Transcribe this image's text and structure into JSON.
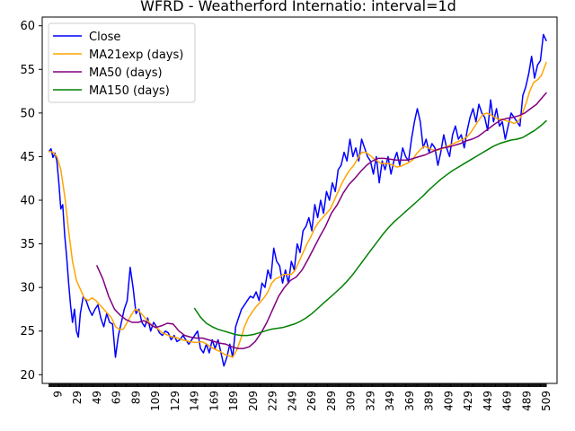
{
  "chart_data": {
    "type": "line",
    "title": "WFRD - Weatherford Internatio: interval=1d",
    "xlabel": "",
    "ylabel": "",
    "xlim": [
      -7,
      520
    ],
    "ylim": [
      19,
      61
    ],
    "yticks": [
      20,
      25,
      30,
      35,
      40,
      45,
      50,
      55,
      60
    ],
    "xticks": [
      9,
      29,
      49,
      69,
      89,
      109,
      129,
      149,
      169,
      189,
      209,
      229,
      249,
      269,
      289,
      309,
      329,
      349,
      369,
      389,
      409,
      429,
      449,
      469,
      489,
      509
    ],
    "grid": false,
    "legend_position": "upper-left",
    "colors": {
      "close": "#0000ff",
      "ma21": "#ffa500",
      "ma50": "#800080",
      "ma150": "#008000"
    },
    "series": [
      {
        "name": "Close",
        "color": "#0000ff",
        "x": [
          0,
          2,
          4,
          6,
          8,
          10,
          12,
          14,
          16,
          18,
          20,
          22,
          24,
          26,
          28,
          30,
          32,
          35,
          38,
          41,
          44,
          47,
          50,
          53,
          56,
          59,
          62,
          65,
          68,
          71,
          74,
          77,
          80,
          83,
          86,
          89,
          92,
          95,
          98,
          101,
          104,
          107,
          110,
          113,
          116,
          119,
          122,
          125,
          128,
          131,
          134,
          137,
          140,
          143,
          146,
          149,
          152,
          155,
          158,
          161,
          164,
          167,
          170,
          173,
          176,
          179,
          182,
          185,
          188,
          191,
          194,
          197,
          200,
          203,
          206,
          209,
          212,
          215,
          218,
          221,
          224,
          227,
          230,
          233,
          236,
          239,
          242,
          245,
          248,
          251,
          254,
          257,
          260,
          263,
          266,
          269,
          272,
          275,
          278,
          281,
          284,
          287,
          290,
          293,
          296,
          299,
          302,
          305,
          308,
          311,
          314,
          317,
          320,
          323,
          326,
          329,
          332,
          335,
          338,
          341,
          344,
          347,
          350,
          353,
          356,
          359,
          362,
          365,
          368,
          371,
          374,
          377,
          380,
          383,
          386,
          389,
          392,
          395,
          398,
          401,
          404,
          407,
          410,
          413,
          416,
          419,
          422,
          425,
          428,
          431,
          434,
          437,
          440,
          443,
          446,
          449,
          452,
          455,
          458,
          461,
          464,
          467,
          470,
          473,
          476,
          479,
          482,
          485,
          488,
          491,
          494,
          497,
          500,
          503,
          506,
          509
        ],
        "values": [
          45.6,
          45.9,
          44.9,
          45.4,
          44.5,
          42.0,
          39.0,
          39.5,
          36.0,
          33.5,
          30.5,
          28.0,
          26.0,
          27.5,
          25.0,
          24.3,
          27.0,
          29.0,
          28.5,
          27.5,
          26.8,
          27.5,
          28.0,
          26.5,
          25.5,
          27.0,
          26.0,
          25.8,
          22.0,
          24.5,
          26.0,
          27.5,
          28.5,
          32.3,
          30.0,
          27.0,
          27.5,
          26.0,
          25.5,
          26.5,
          25.0,
          26.0,
          25.5,
          24.8,
          24.5,
          25.0,
          24.8,
          24.0,
          24.5,
          23.8,
          24.0,
          24.5,
          24.0,
          23.5,
          24.0,
          24.5,
          25.0,
          23.0,
          22.5,
          23.5,
          22.5,
          24.0,
          23.0,
          24.0,
          22.5,
          21.0,
          22.0,
          23.5,
          22.0,
          25.5,
          26.5,
          27.5,
          28.0,
          28.5,
          29.0,
          28.8,
          29.5,
          28.5,
          30.5,
          30.0,
          32.0,
          31.0,
          34.5,
          33.0,
          32.5,
          30.5,
          32.0,
          30.5,
          33.0,
          32.0,
          35.0,
          34.0,
          36.5,
          37.0,
          38.0,
          36.5,
          39.5,
          38.0,
          40.0,
          38.5,
          41.0,
          40.0,
          42.0,
          41.0,
          43.5,
          44.0,
          45.5,
          44.5,
          47.0,
          45.0,
          46.0,
          44.5,
          47.0,
          46.0,
          45.0,
          44.5,
          43.0,
          45.0,
          42.0,
          44.5,
          43.5,
          45.0,
          43.0,
          44.5,
          45.5,
          44.0,
          46.0,
          45.0,
          44.5,
          47.0,
          49.0,
          50.5,
          49.0,
          46.0,
          47.0,
          45.5,
          46.5,
          46.0,
          44.0,
          45.5,
          47.5,
          46.0,
          45.0,
          47.5,
          48.5,
          47.0,
          47.5,
          46.0,
          48.0,
          49.5,
          50.5,
          49.0,
          51.0,
          50.0,
          49.5,
          48.0,
          51.5,
          49.0,
          50.5,
          48.5,
          49.0,
          47.0,
          48.5,
          50.0,
          49.5,
          49.0,
          48.5,
          52.0,
          53.0,
          54.5,
          56.5,
          54.0,
          55.5,
          56.0,
          59.0,
          58.3
        ]
      },
      {
        "name": "MA21exp (days)",
        "color": "#ffa500",
        "x": [
          0,
          4,
          8,
          12,
          16,
          20,
          24,
          28,
          32,
          36,
          40,
          44,
          48,
          52,
          56,
          60,
          64,
          68,
          72,
          76,
          80,
          84,
          88,
          92,
          96,
          100,
          104,
          108,
          112,
          116,
          120,
          124,
          128,
          132,
          136,
          140,
          144,
          148,
          152,
          156,
          160,
          164,
          168,
          172,
          176,
          180,
          184,
          188,
          192,
          196,
          200,
          204,
          208,
          212,
          216,
          220,
          224,
          228,
          232,
          236,
          240,
          244,
          248,
          252,
          256,
          260,
          264,
          268,
          272,
          276,
          280,
          284,
          288,
          292,
          296,
          300,
          304,
          308,
          312,
          316,
          320,
          324,
          328,
          332,
          336,
          340,
          344,
          348,
          352,
          356,
          360,
          364,
          368,
          372,
          376,
          380,
          384,
          388,
          392,
          396,
          400,
          404,
          408,
          412,
          416,
          420,
          424,
          428,
          432,
          436,
          440,
          444,
          448,
          452,
          456,
          460,
          464,
          468,
          472,
          476,
          480,
          484,
          488,
          492,
          496,
          500,
          504,
          509
        ],
        "values": [
          45.6,
          45.5,
          45.0,
          43.5,
          40.5,
          36.5,
          33.0,
          30.8,
          29.8,
          28.8,
          28.5,
          28.8,
          28.5,
          28.0,
          27.5,
          27.0,
          26.5,
          25.5,
          25.2,
          25.2,
          26.0,
          26.8,
          27.5,
          27.3,
          26.8,
          26.3,
          25.8,
          25.5,
          25.2,
          24.8,
          24.6,
          24.4,
          24.3,
          24.2,
          24.0,
          23.9,
          23.8,
          23.7,
          23.7,
          23.8,
          23.6,
          23.3,
          23.0,
          22.8,
          22.6,
          22.3,
          22.2,
          22.0,
          22.8,
          24.0,
          25.5,
          26.5,
          27.2,
          27.8,
          28.3,
          28.8,
          29.5,
          30.5,
          31.0,
          31.2,
          31.5,
          31.5,
          31.5,
          32.0,
          33.0,
          34.0,
          35.0,
          35.8,
          36.8,
          37.5,
          38.0,
          38.5,
          39.0,
          40.0,
          41.0,
          42.0,
          42.8,
          43.5,
          44.0,
          44.8,
          45.5,
          45.5,
          45.2,
          44.8,
          44.5,
          44.2,
          44.2,
          44.2,
          44.0,
          43.8,
          43.9,
          44.1,
          44.3,
          44.6,
          45.3,
          45.8,
          46.2,
          46.0,
          45.8,
          45.7,
          45.8,
          46.0,
          46.2,
          46.4,
          46.6,
          46.8,
          47.0,
          47.3,
          47.8,
          48.5,
          49.2,
          49.8,
          50.0,
          49.8,
          49.5,
          49.3,
          49.3,
          49.1,
          49.0,
          48.8,
          49.0,
          49.8,
          51.0,
          52.5,
          53.5,
          53.8,
          54.3,
          55.8
        ]
      },
      {
        "name": "MA50 (days)",
        "color": "#800080",
        "x": [
          49,
          55,
          61,
          67,
          73,
          79,
          85,
          91,
          97,
          103,
          109,
          115,
          121,
          127,
          133,
          139,
          145,
          151,
          157,
          163,
          169,
          175,
          181,
          187,
          193,
          199,
          205,
          211,
          217,
          223,
          229,
          235,
          241,
          247,
          253,
          259,
          265,
          271,
          277,
          283,
          289,
          295,
          301,
          307,
          313,
          319,
          325,
          331,
          337,
          343,
          349,
          355,
          361,
          367,
          373,
          379,
          385,
          391,
          397,
          403,
          409,
          415,
          421,
          427,
          433,
          439,
          445,
          451,
          457,
          463,
          469,
          475,
          481,
          487,
          493,
          499,
          505,
          509
        ],
        "values": [
          32.5,
          31.0,
          29.0,
          27.5,
          26.8,
          26.3,
          26.0,
          26.0,
          26.2,
          25.8,
          25.4,
          25.6,
          25.9,
          25.8,
          25.0,
          24.5,
          24.3,
          24.2,
          24.2,
          24.0,
          23.8,
          23.6,
          23.5,
          23.2,
          23.0,
          23.0,
          23.2,
          23.8,
          24.8,
          26.0,
          27.5,
          29.0,
          30.0,
          30.8,
          31.2,
          32.0,
          33.2,
          34.5,
          35.8,
          37.0,
          38.5,
          39.5,
          40.8,
          41.8,
          42.5,
          43.3,
          44.0,
          44.5,
          44.8,
          44.8,
          44.7,
          44.6,
          44.6,
          44.6,
          44.8,
          45.0,
          45.2,
          45.5,
          45.8,
          46.0,
          46.1,
          46.3,
          46.5,
          46.8,
          47.0,
          47.3,
          47.8,
          48.3,
          48.8,
          49.2,
          49.4,
          49.5,
          49.7,
          50.0,
          50.5,
          51.0,
          51.8,
          52.3
        ]
      },
      {
        "name": "MA150 (days)",
        "color": "#008000",
        "x": [
          149,
          155,
          161,
          167,
          173,
          179,
          185,
          191,
          197,
          203,
          209,
          215,
          221,
          227,
          233,
          239,
          245,
          251,
          257,
          263,
          269,
          275,
          281,
          287,
          293,
          299,
          305,
          311,
          317,
          323,
          329,
          335,
          341,
          347,
          353,
          359,
          365,
          371,
          377,
          383,
          389,
          395,
          401,
          407,
          413,
          419,
          425,
          431,
          437,
          443,
          449,
          455,
          461,
          467,
          473,
          479,
          485,
          491,
          497,
          503,
          509
        ],
        "values": [
          27.6,
          26.6,
          25.9,
          25.5,
          25.2,
          25.0,
          24.8,
          24.6,
          24.5,
          24.5,
          24.6,
          24.8,
          25.0,
          25.2,
          25.3,
          25.4,
          25.6,
          25.8,
          26.1,
          26.5,
          27.0,
          27.6,
          28.2,
          28.8,
          29.4,
          30.0,
          30.7,
          31.5,
          32.4,
          33.3,
          34.2,
          35.1,
          36.0,
          36.8,
          37.5,
          38.1,
          38.7,
          39.3,
          39.9,
          40.5,
          41.2,
          41.8,
          42.4,
          42.9,
          43.4,
          43.8,
          44.2,
          44.6,
          45.0,
          45.4,
          45.8,
          46.2,
          46.5,
          46.7,
          46.9,
          47.0,
          47.2,
          47.6,
          48.0,
          48.5,
          49.1
        ]
      }
    ]
  }
}
